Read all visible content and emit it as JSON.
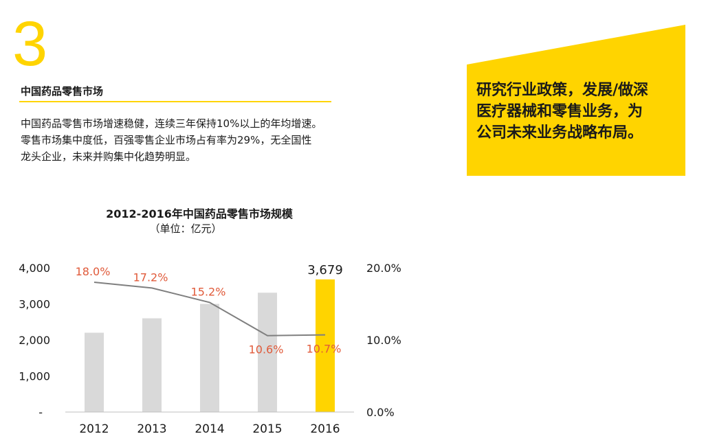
{
  "section": {
    "number": "3",
    "title": "中国药品零售市场",
    "body_lines": [
      "中国药品零售市场增速稳健，连续三年保持10%以上的年均增速。",
      "零售市场集中度低，百强零售企业市场占有率为29%，无全国性",
      "龙头企业，未来并购集中化趋势明显。"
    ]
  },
  "callout": {
    "lines": [
      "研究行业政策，发展/做深",
      "医疗器械和零售业务，为",
      "公司未来业务战略布局。"
    ]
  },
  "colors": {
    "accent": "#ffd400",
    "bar": "#d9d9d9",
    "line": "#7f7f7f",
    "growth_label": "#e05a3a"
  },
  "chart_data": {
    "type": "bar",
    "title": "2012-2016年中国药品零售市场规模",
    "subtitle": "（单位：亿元）",
    "categories": [
      "2012",
      "2013",
      "2014",
      "2015",
      "2016"
    ],
    "values": [
      2200,
      2600,
      3000,
      3310,
      3679
    ],
    "value_labels": [
      "",
      "",
      "",
      "",
      "3,679"
    ],
    "ylim": [
      0,
      4000
    ],
    "y_ticks": [
      "-",
      "1,000",
      "2,000",
      "3,000",
      "4,000"
    ],
    "y2lim": [
      0,
      20
    ],
    "y2_ticks": [
      "0.0%",
      "10.0%",
      "20.0%"
    ],
    "growth": [
      18.0,
      17.2,
      15.2,
      10.6,
      10.7
    ],
    "growth_labels": [
      "18.0%",
      "17.2%",
      "15.2%",
      "10.6%",
      "10.7%"
    ],
    "highlight_index": 4,
    "grid": false
  }
}
